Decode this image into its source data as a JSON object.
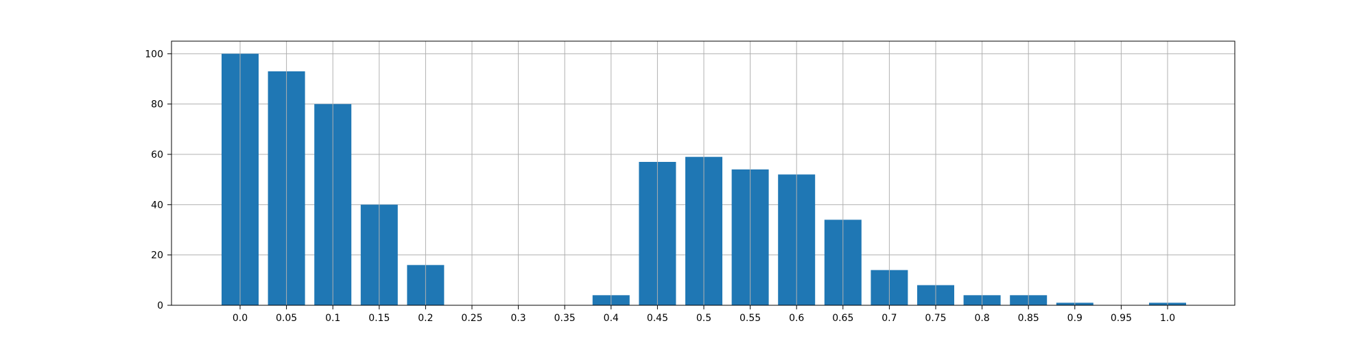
{
  "chart_data": {
    "type": "bar",
    "categories": [
      "0.0",
      "0.05",
      "0.1",
      "0.15",
      "0.2",
      "0.25",
      "0.3",
      "0.35",
      "0.4",
      "0.45",
      "0.5",
      "0.55",
      "0.6",
      "0.65",
      "0.7",
      "0.75",
      "0.8",
      "0.85",
      "0.9",
      "0.95",
      "1.0"
    ],
    "values": [
      100,
      93,
      80,
      40,
      16,
      0,
      0,
      0,
      4,
      57,
      59,
      54,
      52,
      34,
      14,
      8,
      4,
      4,
      1,
      0,
      1
    ],
    "ylim": [
      0,
      105
    ],
    "yticks": [
      0,
      20,
      40,
      60,
      80,
      100
    ],
    "grid": true,
    "bar_color": "#1f77b4",
    "grid_color": "#b0b0b0"
  }
}
